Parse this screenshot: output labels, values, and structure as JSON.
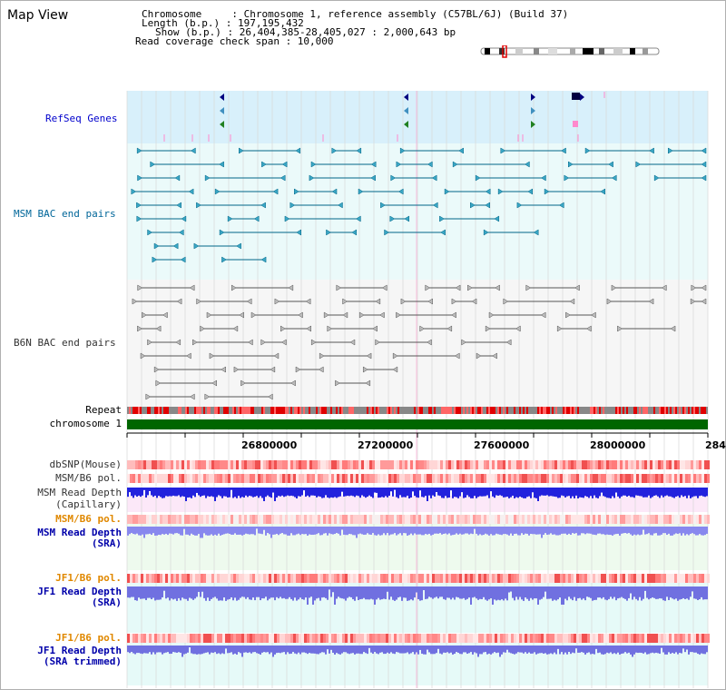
{
  "header": {
    "title": "Map View",
    "chromosome_line": "Chromosome     : Chromosome 1, reference assembly (C57BL/6J) (Build 37)",
    "length_line": "Length (b.p.) : 197,195,432",
    "show_line": "Show (b.p.) : 26,404,385-28,405,027 : 2,000,643 bp",
    "coverage_line": "Read coverage check span : 10,000"
  },
  "tracks": {
    "refseq": "RefSeq Genes",
    "msm_bac": "MSM BAC end pairs",
    "b6n_bac": "B6N BAC end pairs",
    "repeat": "Repeat",
    "chromosome": "chromosome 1",
    "dbsnp": "dbSNP(Mouse)",
    "msm_b6_pol": "MSM/B6 pol.",
    "msm_depth_cap_1": "MSM Read Depth",
    "msm_depth_cap_2": "(Capillary)",
    "msm_b6_pol_sra": "MSM/B6 pol.",
    "msm_depth_sra_1": "MSM Read Depth",
    "msm_depth_sra_2": "(SRA)",
    "jf1_b6_pol": "JF1/B6 pol.",
    "jf1_depth_sra_1": "JF1 Read Depth",
    "jf1_depth_sra_2": "(SRA)",
    "jf1_b6_pol_trim": "JF1/B6 pol.",
    "jf1_depth_trim_1": "JF1 Read Depth",
    "jf1_depth_trim_2": "(SRA trimmed)"
  },
  "axis": {
    "ticks": [
      "26800000",
      "27200000",
      "27600000",
      "28000000",
      "284"
    ]
  },
  "colors": {
    "refseq_label": "#0000cc",
    "msm_label": "#006699",
    "b6n_label": "#333333",
    "orange_label": "#e08800",
    "blue_label": "#0000aa",
    "chromosome": "#006600",
    "refseq_bg": "#d8f0fb",
    "bac_bg": "#ebfafa",
    "b6n_bg": "#f6f6f6"
  }
}
